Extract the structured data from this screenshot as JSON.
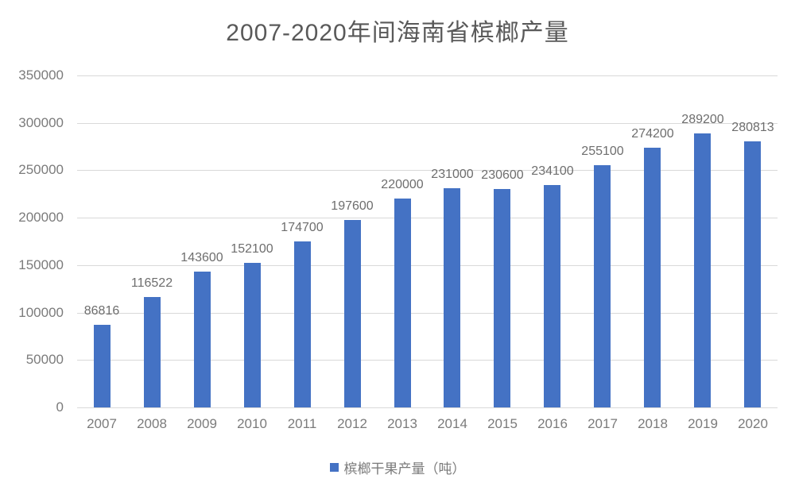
{
  "chart_data": {
    "type": "bar",
    "title": "2007-2020年间海南省槟榔产量",
    "categories": [
      "2007",
      "2008",
      "2009",
      "2010",
      "2011",
      "2012",
      "2013",
      "2014",
      "2015",
      "2016",
      "2017",
      "2018",
      "2019",
      "2020"
    ],
    "values": [
      86816,
      116522,
      143600,
      152100,
      174700,
      197600,
      220000,
      231000,
      230600,
      234100,
      255100,
      274200,
      289200,
      280813
    ],
    "series_name": "槟榔干果产量（吨）",
    "xlabel": "",
    "ylabel": "",
    "ylim": [
      0,
      350000
    ],
    "ytick_step": 50000,
    "ytick_labels": [
      "0",
      "50000",
      "100000",
      "150000",
      "200000",
      "250000",
      "300000",
      "350000"
    ],
    "grid": true,
    "legend_position": "bottom",
    "data_labels": true,
    "colors": {
      "bar": "#4472C4",
      "grid": "#D9D9D9",
      "tick_label": "#7b7b7b",
      "data_label": "#6e6e6e",
      "title": "#595959"
    }
  }
}
